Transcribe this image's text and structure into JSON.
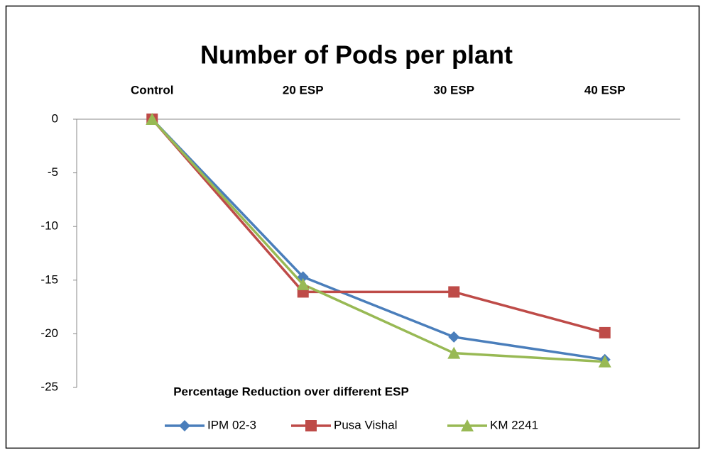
{
  "chart_data": {
    "type": "line",
    "title": "Number of Pods per plant",
    "x_label": "Percentage Reduction over different ESP",
    "categories": [
      "Control",
      "20 ESP",
      "30 ESP",
      "40 ESP"
    ],
    "series": [
      {
        "name": "IPM 02-3",
        "color": "#4a7ebb",
        "marker": "diamond",
        "values": [
          0,
          -14.7,
          -20.3,
          -22.4
        ]
      },
      {
        "name": "Pusa Vishal",
        "color": "#be4b48",
        "marker": "square",
        "values": [
          0,
          -16.1,
          -16.1,
          -19.9
        ]
      },
      {
        "name": "KM 2241",
        "color": "#98b954",
        "marker": "triangle",
        "values": [
          0,
          -15.4,
          -21.8,
          -22.6
        ]
      }
    ],
    "ylim": [
      -25,
      0
    ],
    "yticks": [
      0,
      -5,
      -10,
      -15,
      -20,
      -25
    ],
    "grid": false,
    "legend": "bottom"
  }
}
